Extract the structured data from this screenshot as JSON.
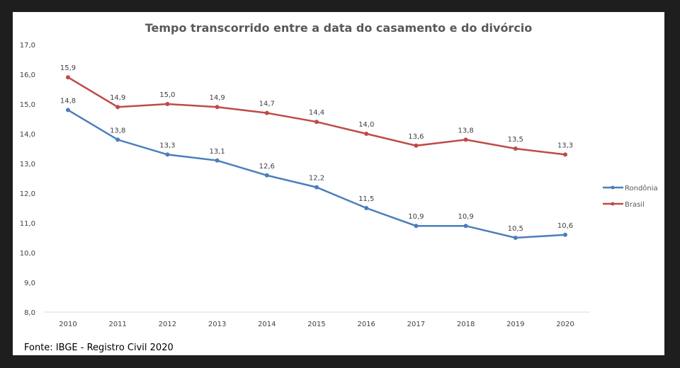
{
  "chart_data": {
    "type": "line",
    "title": "Tempo transcorrido entre a data do casamento e do divórcio",
    "xlabel": "",
    "ylabel": "",
    "x": [
      "2010",
      "2011",
      "2012",
      "2013",
      "2014",
      "2015",
      "2016",
      "2017",
      "2018",
      "2019",
      "2020"
    ],
    "ylim": [
      8.0,
      17.0
    ],
    "yticks": [
      "8,0",
      "9,0",
      "10,0",
      "11,0",
      "12,0",
      "13,0",
      "14,0",
      "15,0",
      "16,0",
      "17,0"
    ],
    "grid": false,
    "legend_position": "right",
    "series": [
      {
        "name": "Rondônia",
        "color": "#4a7ebb",
        "values": [
          14.8,
          13.8,
          13.3,
          13.1,
          12.6,
          12.2,
          11.5,
          10.9,
          10.9,
          10.5,
          10.6
        ]
      },
      {
        "name": "Brasil",
        "color": "#be4b48",
        "values": [
          15.9,
          14.9,
          15.0,
          14.9,
          14.7,
          14.4,
          14.0,
          13.6,
          13.8,
          13.5,
          13.3
        ]
      }
    ],
    "source": "Fonte: IBGE - Registro Civil 2020"
  }
}
